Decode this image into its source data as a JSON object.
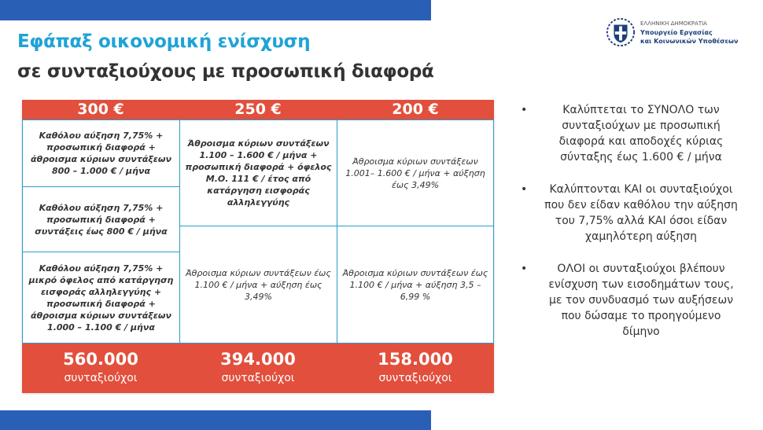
{
  "header": {
    "title": "Εφάπαξ οικονομική ενίσχυση",
    "subtitle": "σε συνταξιούχους με προσωπική διαφορά"
  },
  "logo": {
    "line1": "ΕΛΛΗΝΙΚΗ ΔΗΜΟΚΡΑΤΙΑ",
    "line2": "Υπουργείο Εργασίας",
    "line3": "και Κοινωνικών Υποθέσεων",
    "icon": "greek-coat-of-arms-icon"
  },
  "colors": {
    "accent_red": "#e24f3c",
    "accent_blue": "#2a5fb6",
    "title_cyan": "#1fa3d6",
    "border_blue": "#2b9bc9"
  },
  "table": {
    "columns": [
      {
        "amount": "300 €",
        "cells": [
          "Καθόλου αύξηση 7,75% + προσωπική διαφορά + άθροισμα κύριων συντάξεων 800 – 1.000 € / μήνα",
          "Καθόλου αύξηση 7,75% + προσωπική διαφορά + συντάξεις έως 800 € / μήνα",
          "Καθόλου αύξηση 7,75% + μικρό όφελος από κατάργηση εισφοράς αλληλεγγύης + προσωπική διαφορά + άθροισμα κύριων συντάξεων 1.000 – 1.100 € / μήνα"
        ],
        "total": "560.000",
        "total_label": "συνταξιούχοι"
      },
      {
        "amount": "250 €",
        "cells": [
          "Άθροισμα κύριων συντάξεων 1.100 – 1.600 € / μήνα + προσωπική διαφορά + όφελος Μ.Ο. 111 € / έτος από κατάργηση εισφοράς αλληλεγγύης",
          "Άθροισμα κύριων συντάξεων έως 1.100 € / μήνα + αύξηση έως 3,49%"
        ],
        "total": "394.000",
        "total_label": "συνταξιούχοι"
      },
      {
        "amount": "200 €",
        "cells": [
          "Άθροισμα κύριων συντάξεων 1.001– 1.600 € / μήνα + αύξηση έως 3,49%",
          "Άθροισμα κύριων συντάξεων έως 1.100 € / μήνα + αύξηση 3,5 – 6,99 %"
        ],
        "total": "158.000",
        "total_label": "συνταξιούχοι"
      }
    ]
  },
  "bullets": [
    "Καλύπτεται το ΣΥΝΟΛΟ των συνταξιούχων με προσωπική διαφορά και αποδοχές κύριας σύνταξης έως 1.600 € / μήνα",
    "Καλύπτονται ΚΑΙ οι συνταξιούχοι που δεν είδαν καθόλου την αύξηση του 7,75% αλλά ΚΑΙ όσοι είδαν χαμηλότερη αύξηση",
    "ΟΛΟΙ οι συνταξιούχοι βλέπουν ενίσχυση των εισοδημάτων τους, με τον συνδυασμό των αυξήσεων που δώσαμε το προηγούμενο δίμηνο"
  ]
}
